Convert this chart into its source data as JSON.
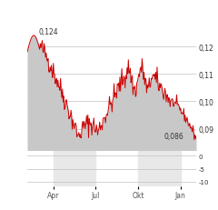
{
  "title": "",
  "bg_color": "#ffffff",
  "chart_bg": "#ffffff",
  "line_color": "#cc0000",
  "fill_color": "#c8c8c8",
  "fill_alpha": 1.0,
  "ylim_main": [
    0.082,
    0.128
  ],
  "yticks_main": [
    0.09,
    0.1,
    0.11,
    0.12
  ],
  "ytick_labels_main": [
    "0,09",
    "0,10",
    "0,11",
    "0,12"
  ],
  "xlabels": [
    "Apr",
    "Jul",
    "Okt",
    "Jan"
  ],
  "annotation_high": "0,124",
  "annotation_low": "0,086",
  "ylim_sub": [
    -12,
    2
  ],
  "yticks_sub": [
    -10,
    -5,
    0
  ],
  "sub_band1_color": "#e8e8e8",
  "sub_band2_color": "#e8e8e8",
  "grid_color": "#c0c0c0"
}
